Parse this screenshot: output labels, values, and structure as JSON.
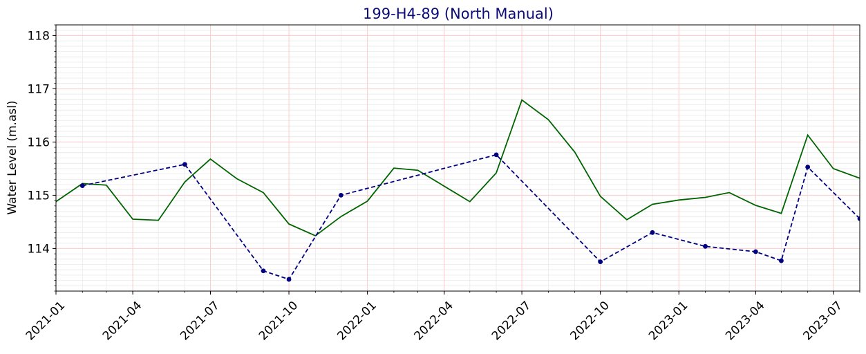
{
  "chart_data": {
    "type": "line",
    "title": "199-H4-89 (North Manual)",
    "xlabel": "",
    "ylabel": "Water Level (m.asl)",
    "x_axis": "date",
    "xlim": [
      "2021-01-01",
      "2023-08-01"
    ],
    "ylim": [
      113.2,
      118.2
    ],
    "x_ticks": [
      "2021-01",
      "2021-04",
      "2021-07",
      "2021-10",
      "2022-01",
      "2022-04",
      "2022-07",
      "2022-10",
      "2023-01",
      "2023-04",
      "2023-07"
    ],
    "y_ticks": [
      114,
      115,
      116,
      117,
      118
    ],
    "grid": true,
    "colors": {
      "green_series": "#006400",
      "blue_series": "#000080",
      "title": "#0d0d7a",
      "grid_major": "#ffcccc",
      "grid_minor": "#e8e8e8"
    },
    "series": [
      {
        "style": "solid",
        "color": "#006400",
        "markers": false,
        "points": [
          [
            "2021-01-01",
            114.88
          ],
          [
            "2021-02-01",
            115.22
          ],
          [
            "2021-03-01",
            115.19
          ],
          [
            "2021-04-01",
            114.55
          ],
          [
            "2021-05-01",
            114.53
          ],
          [
            "2021-06-01",
            115.25
          ],
          [
            "2021-07-01",
            115.68
          ],
          [
            "2021-08-01",
            115.31
          ],
          [
            "2021-09-01",
            115.05
          ],
          [
            "2021-10-01",
            114.46
          ],
          [
            "2021-11-01",
            114.24
          ],
          [
            "2021-12-01",
            114.6
          ],
          [
            "2022-01-01",
            114.89
          ],
          [
            "2022-02-01",
            115.51
          ],
          [
            "2022-03-01",
            115.47
          ],
          [
            "2022-04-01",
            115.17
          ],
          [
            "2022-05-01",
            114.88
          ],
          [
            "2022-06-01",
            115.42
          ],
          [
            "2022-07-01",
            116.79
          ],
          [
            "2022-08-01",
            116.42
          ],
          [
            "2022-09-01",
            115.81
          ],
          [
            "2022-10-01",
            114.98
          ],
          [
            "2022-11-01",
            114.54
          ],
          [
            "2022-12-01",
            114.83
          ],
          [
            "2023-01-01",
            114.91
          ],
          [
            "2023-02-01",
            114.96
          ],
          [
            "2023-03-01",
            115.05
          ],
          [
            "2023-04-01",
            114.81
          ],
          [
            "2023-05-01",
            114.66
          ],
          [
            "2023-06-01",
            116.13
          ],
          [
            "2023-07-01",
            115.5
          ],
          [
            "2023-08-01",
            115.32
          ]
        ]
      },
      {
        "style": "dashed",
        "color": "#000080",
        "markers": true,
        "points": [
          [
            "2021-02-01",
            115.18
          ],
          [
            "2021-06-01",
            115.58
          ],
          [
            "2021-09-01",
            113.58
          ],
          [
            "2021-10-01",
            113.42
          ],
          [
            "2021-12-01",
            115.0
          ],
          [
            "2022-06-01",
            115.76
          ],
          [
            "2022-10-01",
            113.75
          ],
          [
            "2022-12-01",
            114.3
          ],
          [
            "2023-02-01",
            114.04
          ],
          [
            "2023-04-01",
            113.94
          ],
          [
            "2023-05-01",
            113.77
          ],
          [
            "2023-06-01",
            115.53
          ],
          [
            "2023-08-01",
            114.56
          ]
        ]
      }
    ]
  }
}
